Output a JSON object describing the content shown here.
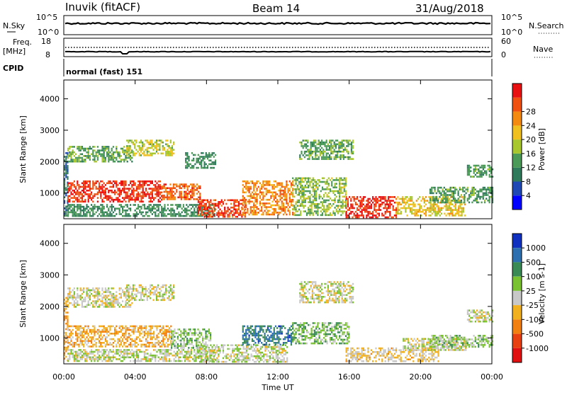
{
  "header": {
    "station": "Inuvik (fitACF)",
    "beam": "Beam 14",
    "date": "31/Aug/2018"
  },
  "top_panels": {
    "sky": {
      "left_label": "N.Sky",
      "left_ticks": [
        "10^5",
        "10^0"
      ],
      "right_ticks": [
        "10^5",
        "10^0"
      ],
      "right_label": "N.Search"
    },
    "freq": {
      "left_label_1": "Freq.",
      "left_label_2": "[MHz]",
      "left_ticks": [
        "18",
        "8"
      ],
      "right_ticks": [
        "60",
        "0"
      ],
      "right_label": "Nave"
    },
    "cpid": {
      "label": "CPID",
      "text": "normal (fast) 151"
    }
  },
  "chart_data": [
    {
      "type": "heatmap",
      "title": "",
      "xlabel": "Time UT",
      "ylabel": "Slant Range [km]",
      "x_ticks": [
        "00:00",
        "04:00",
        "08:00",
        "12:00",
        "16:00",
        "20:00",
        "00:00"
      ],
      "y_ticks": [
        1000,
        2000,
        3000,
        4000
      ],
      "xlim": [
        0,
        24
      ],
      "ylim": [
        180,
        4600
      ],
      "colorbar": {
        "label": "Power [dB]",
        "ticks": [
          "4",
          "8",
          "12",
          "16",
          "20",
          "24",
          "28"
        ],
        "range": [
          0,
          30
        ],
        "colors": [
          "#0000ff",
          "#1f48b5",
          "#2f7a5a",
          "#4c9a58",
          "#a8c62e",
          "#f0c020",
          "#f58a10",
          "#f05010",
          "#e81010"
        ]
      },
      "regions": [
        {
          "t0": 0.0,
          "t1": 0.25,
          "r0": 200,
          "r1": 2300,
          "value": 8
        },
        {
          "t0": 0.2,
          "t1": 3.8,
          "r0": 2000,
          "r1": 2500,
          "value": 12
        },
        {
          "t0": 0.2,
          "t1": 5.5,
          "r0": 700,
          "r1": 1400,
          "value": 27
        },
        {
          "t0": 5.5,
          "t1": 7.6,
          "r0": 800,
          "r1": 1300,
          "value": 24
        },
        {
          "t0": 0.2,
          "t1": 8.5,
          "r0": 250,
          "r1": 650,
          "value": 10
        },
        {
          "t0": 3.5,
          "t1": 6.2,
          "r0": 2200,
          "r1": 2700,
          "value": 16
        },
        {
          "t0": 6.8,
          "t1": 8.5,
          "r0": 1800,
          "r1": 2300,
          "value": 10
        },
        {
          "t0": 7.5,
          "t1": 10.2,
          "r0": 250,
          "r1": 800,
          "value": 26
        },
        {
          "t0": 10.0,
          "t1": 12.8,
          "r0": 300,
          "r1": 1400,
          "value": 22
        },
        {
          "t0": 12.8,
          "t1": 15.8,
          "r0": 300,
          "r1": 1500,
          "value": 14
        },
        {
          "t0": 13.2,
          "t1": 16.2,
          "r0": 2100,
          "r1": 2700,
          "value": 12
        },
        {
          "t0": 15.8,
          "t1": 18.6,
          "r0": 250,
          "r1": 900,
          "value": 27
        },
        {
          "t0": 18.6,
          "t1": 22.5,
          "r0": 300,
          "r1": 900,
          "value": 18
        },
        {
          "t0": 20.5,
          "t1": 24.0,
          "r0": 700,
          "r1": 1200,
          "value": 11
        },
        {
          "t0": 22.6,
          "t1": 24.0,
          "r0": 1500,
          "r1": 1900,
          "value": 11
        }
      ]
    },
    {
      "type": "heatmap",
      "title": "",
      "xlabel": "Time UT",
      "ylabel": "Slant Range [km]",
      "x_ticks": [
        "00:00",
        "04:00",
        "08:00",
        "12:00",
        "16:00",
        "20:00",
        "00:00"
      ],
      "y_ticks": [
        1000,
        2000,
        3000,
        4000
      ],
      "xlim": [
        0,
        24
      ],
      "ylim": [
        180,
        4600
      ],
      "colorbar": {
        "label": "Velocity [m s-1]",
        "ticks": [
          "1000",
          "500",
          "100",
          "25",
          "-25",
          "-100",
          "-500",
          "-1000"
        ],
        "range": [
          1200,
          -1200
        ],
        "colors": [
          "#1030c0",
          "#2e6fb0",
          "#3a8a55",
          "#7ac232",
          "#c8c8c8",
          "#f0b020",
          "#f28010",
          "#e84010",
          "#e01010"
        ]
      },
      "regions": [
        {
          "t0": 0.0,
          "t1": 0.25,
          "r0": 200,
          "r1": 2300,
          "value": -300
        },
        {
          "t0": 0.2,
          "t1": 3.8,
          "r0": 2000,
          "r1": 2600,
          "value": 0
        },
        {
          "t0": 0.2,
          "t1": 6.0,
          "r0": 700,
          "r1": 1400,
          "value": -300
        },
        {
          "t0": 6.0,
          "t1": 8.2,
          "r0": 700,
          "r1": 1300,
          "value": 250
        },
        {
          "t0": 0.2,
          "t1": 8.5,
          "r0": 250,
          "r1": 650,
          "value": 70
        },
        {
          "t0": 3.5,
          "t1": 6.2,
          "r0": 2200,
          "r1": 2700,
          "value": 0
        },
        {
          "t0": 7.5,
          "t1": 12.5,
          "r0": 250,
          "r1": 800,
          "value": 60
        },
        {
          "t0": 10.0,
          "t1": 12.8,
          "r0": 800,
          "r1": 1400,
          "value": 700
        },
        {
          "t0": 12.8,
          "t1": 16.0,
          "r0": 800,
          "r1": 1500,
          "value": 300
        },
        {
          "t0": 13.2,
          "t1": 16.2,
          "r0": 2100,
          "r1": 2800,
          "value": 0
        },
        {
          "t0": 15.8,
          "t1": 21.0,
          "r0": 250,
          "r1": 700,
          "value": -150
        },
        {
          "t0": 19.0,
          "t1": 22.5,
          "r0": 600,
          "r1": 1000,
          "value": 0
        },
        {
          "t0": 20.5,
          "t1": 24.0,
          "r0": 700,
          "r1": 1100,
          "value": 200
        },
        {
          "t0": 22.6,
          "t1": 24.0,
          "r0": 1500,
          "r1": 1900,
          "value": 0
        }
      ]
    }
  ]
}
